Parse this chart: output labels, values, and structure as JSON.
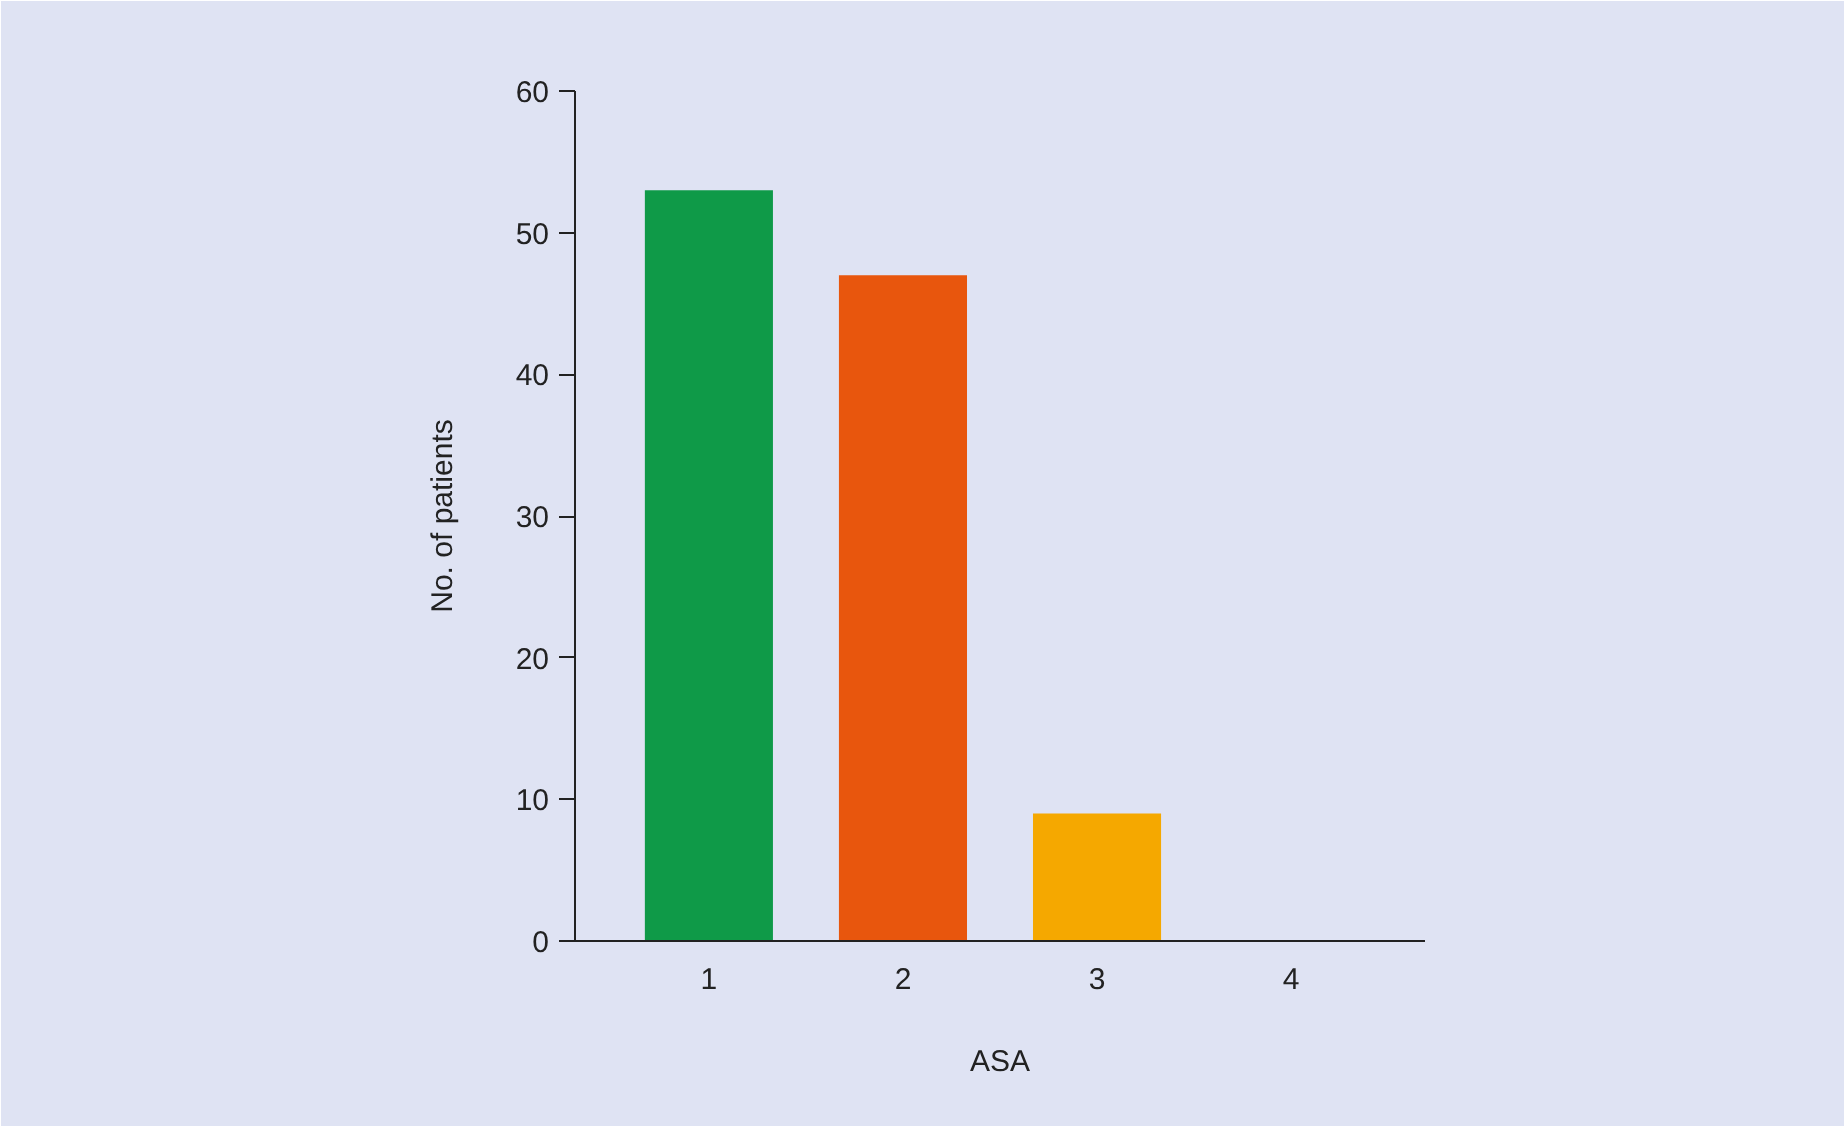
{
  "chart_data": {
    "type": "bar",
    "xlabel": "ASA",
    "ylabel": "No. of patients",
    "categories": [
      "1",
      "2",
      "3",
      "4"
    ],
    "values": [
      53,
      47,
      9,
      0
    ],
    "colors": [
      "#0f9a48",
      "#e8560d",
      "#f5a800",
      "#f5a800"
    ],
    "ylim": [
      0,
      60
    ],
    "yticks": [
      0,
      10,
      20,
      30,
      40,
      50,
      60
    ],
    "grid": false
  }
}
